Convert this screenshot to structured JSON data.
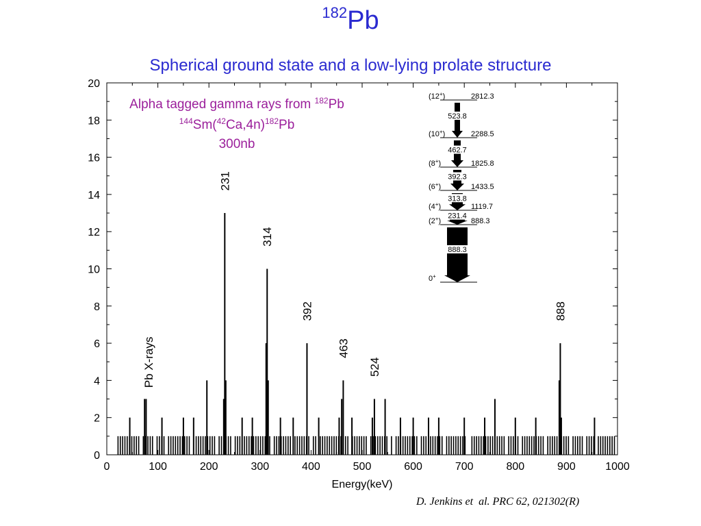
{
  "header": {
    "title_sup": "182",
    "title_main": "Pb",
    "subtitle": "Spherical ground state and a low-lying prolate structure"
  },
  "annotation": {
    "line1_text": "Alpha tagged gamma rays from ",
    "line1_sup": "182",
    "line1_tail": "Pb",
    "line2_sup1": "144",
    "line2_a": "Sm(",
    "line2_sup2": "42",
    "line2_b": "Ca,4n)",
    "line2_sup3": "182",
    "line2_c": "Pb",
    "line3": "300nb"
  },
  "citation": "D. Jenkins et  al. PRC 62, 021302(R)",
  "colors": {
    "title": "#2a2ad0",
    "annotation": "#9b1f9b",
    "bars": "#000000"
  },
  "chart_data": {
    "type": "bar",
    "title": "",
    "xlabel": "Energy(keV)",
    "ylabel": "",
    "xlim": [
      0,
      1000
    ],
    "ylim": [
      0,
      20
    ],
    "xticks": [
      0,
      100,
      200,
      300,
      400,
      500,
      600,
      700,
      800,
      900,
      1000
    ],
    "yticks": [
      0,
      2,
      4,
      6,
      8,
      10,
      12,
      14,
      16,
      18,
      20
    ],
    "peaks": [
      {
        "x": 74,
        "y": 3
      },
      {
        "x": 77,
        "y": 3
      },
      {
        "x": 196,
        "y": 4
      },
      {
        "x": 229,
        "y": 3
      },
      {
        "x": 231,
        "y": 13
      },
      {
        "x": 233,
        "y": 4
      },
      {
        "x": 312,
        "y": 6
      },
      {
        "x": 314,
        "y": 10
      },
      {
        "x": 316,
        "y": 4
      },
      {
        "x": 392,
        "y": 6
      },
      {
        "x": 455,
        "y": 2
      },
      {
        "x": 460,
        "y": 3
      },
      {
        "x": 463,
        "y": 4
      },
      {
        "x": 520,
        "y": 2
      },
      {
        "x": 524,
        "y": 3
      },
      {
        "x": 545,
        "y": 3
      },
      {
        "x": 760,
        "y": 3
      },
      {
        "x": 886,
        "y": 4
      },
      {
        "x": 888,
        "y": 6
      },
      {
        "x": 890,
        "y": 2
      },
      {
        "x": 45,
        "y": 2
      },
      {
        "x": 108,
        "y": 2
      },
      {
        "x": 150,
        "y": 2
      },
      {
        "x": 170,
        "y": 2
      },
      {
        "x": 265,
        "y": 2
      },
      {
        "x": 285,
        "y": 2
      },
      {
        "x": 340,
        "y": 2
      },
      {
        "x": 365,
        "y": 2
      },
      {
        "x": 415,
        "y": 2
      },
      {
        "x": 480,
        "y": 2
      },
      {
        "x": 575,
        "y": 2
      },
      {
        "x": 600,
        "y": 2
      },
      {
        "x": 630,
        "y": 2
      },
      {
        "x": 650,
        "y": 2
      },
      {
        "x": 700,
        "y": 2
      },
      {
        "x": 740,
        "y": 2
      },
      {
        "x": 800,
        "y": 2
      },
      {
        "x": 840,
        "y": 2
      },
      {
        "x": 955,
        "y": 2
      }
    ],
    "background": {
      "y": 1,
      "x_start": 22,
      "x_end": 995,
      "step": 4.5
    },
    "peak_labels": [
      {
        "text": "231",
        "x": 231,
        "y": 14.2
      },
      {
        "text": "314",
        "x": 314,
        "y": 11.2
      },
      {
        "text": "392",
        "x": 392,
        "y": 7.2
      },
      {
        "text": "463",
        "x": 463,
        "y": 5.2
      },
      {
        "text": "524",
        "x": 524,
        "y": 4.2
      },
      {
        "text": "888",
        "x": 888,
        "y": 7.2
      },
      {
        "text": "Pb X-rays",
        "x": 82,
        "y": 3.6
      }
    ],
    "level_scheme": {
      "levels": [
        {
          "spin": "(12+)",
          "spin_main": "(12",
          "spin_sup": "+",
          "energy": "2812.3"
        },
        {
          "spin": "(10+)",
          "spin_main": "(10",
          "spin_sup": "+",
          "energy": "2288.5"
        },
        {
          "spin": "(8+)",
          "spin_main": "(8",
          "spin_sup": "+",
          "energy": "1825.8"
        },
        {
          "spin": "(6+)",
          "spin_main": "(6",
          "spin_sup": "+",
          "energy": "1433.5"
        },
        {
          "spin": "(4+)",
          "spin_main": "(4",
          "spin_sup": "+",
          "energy": "1119.7"
        },
        {
          "spin": "(2+)",
          "spin_main": "(2",
          "spin_sup": "+",
          "energy": "888.3"
        },
        {
          "spin": "0+",
          "spin_main": "0",
          "spin_sup": "+",
          "energy": ""
        }
      ],
      "transitions": [
        "523.8",
        "462.7",
        "392.3",
        "313.8",
        "231.4",
        "888.3"
      ]
    }
  }
}
